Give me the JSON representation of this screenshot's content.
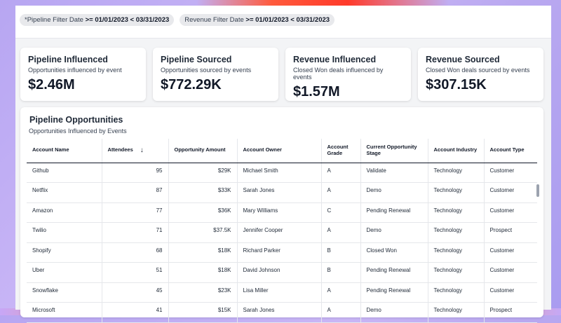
{
  "filters": [
    {
      "label": "*Pipeline Filter Date",
      "value": ">= 01/01/2023 < 03/31/2023"
    },
    {
      "label": "Revenue Filter Date",
      "value": ">= 01/01/2023 < 03/31/2023"
    }
  ],
  "cards": [
    {
      "title": "Pipeline Influenced",
      "subtitle": "Opportunities influenced by event",
      "value": "$2.46M"
    },
    {
      "title": "Pipeline Sourced",
      "subtitle": "Opportunities sourced by events",
      "value": "$772.29K"
    },
    {
      "title": "Revenue Influenced",
      "subtitle": "Closed Won deals influenced by events",
      "value": "$1.57M"
    },
    {
      "title": "Revenue Sourced",
      "subtitle": "Closed Won deals sourced by events",
      "value": "$307.15K"
    }
  ],
  "table": {
    "title": "Pipeline Opportunities",
    "subtitle": "Opportunities Influenced by Events",
    "sort_icon": "arrow-down-icon",
    "columns": [
      "Account Name",
      "Attendees",
      "Opportunity Amount",
      "Account Owner",
      "Account Grade",
      "Current Opportunity Stage",
      "Account Industry",
      "Account Type"
    ],
    "rows": [
      [
        "Github",
        "95",
        "$29K",
        "Michael Smith",
        "A",
        "Validate",
        "Technology",
        "Customer"
      ],
      [
        "Netflix",
        "87",
        "$33K",
        "Sarah Jones",
        "A",
        "Demo",
        "Technology",
        "Customer"
      ],
      [
        "Amazon",
        "77",
        "$36K",
        "Mary Williams",
        "C",
        "Pending Renewal",
        "Technology",
        "Customer"
      ],
      [
        "Twilio",
        "71",
        "$37.5K",
        "Jennifer Cooper",
        "A",
        "Demo",
        "Technology",
        "Prospect"
      ],
      [
        "Shopify",
        "68",
        "$18K",
        "Richard Parker",
        "B",
        "Closed Won",
        "Technology",
        "Customer"
      ],
      [
        "Uber",
        "51",
        "$18K",
        "David Johnson",
        "B",
        "Pending Renewal",
        "Technology",
        "Customer"
      ],
      [
        "Snowflake",
        "45",
        "$23K",
        "Lisa Miller",
        "A",
        "Pending Renewal",
        "Technology",
        "Customer"
      ],
      [
        "Microsoft",
        "41",
        "$15K",
        "Sarah Jones",
        "A",
        "Demo",
        "Technology",
        "Prospect"
      ]
    ]
  },
  "colors": {
    "accent_glow": "#ff5a3c",
    "background": "#b9a8f0"
  }
}
